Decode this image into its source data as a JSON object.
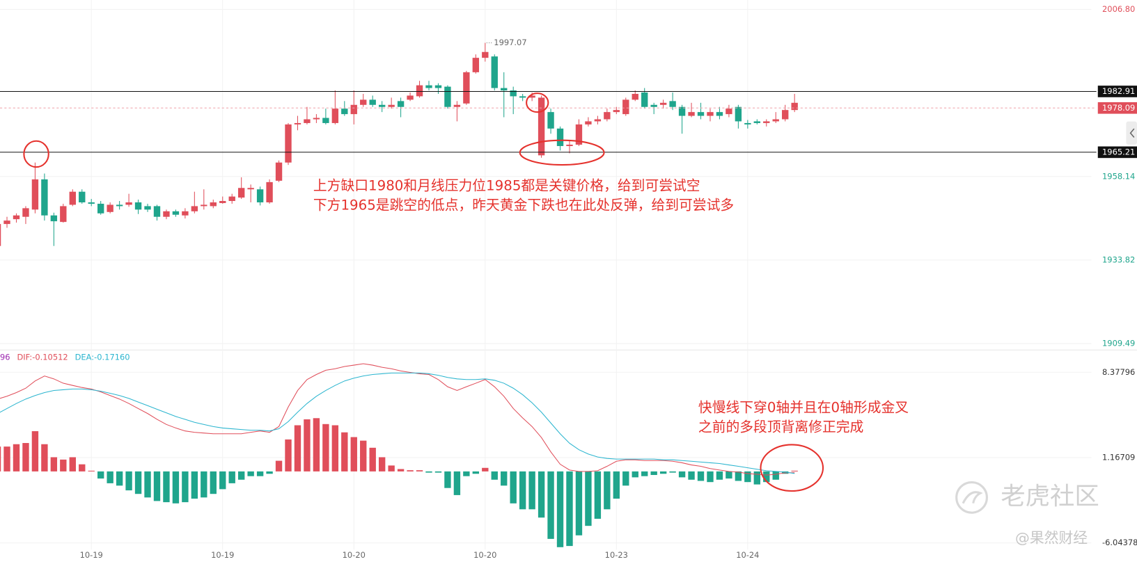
{
  "chart_data": [
    {
      "type": "candlestick",
      "categories": [
        null,
        null,
        null,
        null,
        null,
        null,
        null,
        null,
        null,
        null,
        "10-19",
        null,
        null,
        null,
        null,
        null,
        null,
        null,
        null,
        null,
        null,
        null,
        null,
        null,
        "10-19",
        null,
        null,
        null,
        null,
        null,
        null,
        null,
        null,
        null,
        null,
        null,
        null,
        null,
        "10-20",
        null,
        null,
        null,
        null,
        null,
        null,
        null,
        null,
        null,
        null,
        null,
        null,
        null,
        "10-20",
        null,
        null,
        null,
        null,
        null,
        null,
        null,
        null,
        null,
        null,
        null,
        null,
        null,
        "10-23",
        null,
        null,
        null,
        null,
        null,
        null,
        null,
        null,
        null,
        null,
        null,
        null,
        null,
        "10-24",
        null,
        null,
        null,
        null,
        null
      ],
      "open": [
        1937.9,
        1944.3,
        1945.7,
        1946.4,
        1948.5,
        1957.3,
        1946.8,
        1944.9,
        1949.9,
        1953.7,
        1950.6,
        1950.2,
        1947.8,
        1949.9,
        1949.9,
        1950.6,
        1949.5,
        1949.5,
        1946.4,
        1948.0,
        1946.8,
        1948.0,
        1949.5,
        1949.5,
        1950.4,
        1951.0,
        1952.0,
        1954.4,
        1954.4,
        1950.6,
        1956.9,
        1962.2,
        1973.3,
        1973.7,
        1974.8,
        1975.2,
        1973.7,
        1977.9,
        1976.3,
        1979.0,
        1980.5,
        1979.0,
        1978.4,
        1980.1,
        1980.5,
        1981.5,
        1984.7,
        1984.7,
        1984.3,
        1978.4,
        1979.4,
        1988.5,
        1992.7,
        1993.1,
        1983.9,
        1983.2,
        1981.5,
        1981.1,
        1964.3,
        1976.9,
        1972.1,
        1967.0,
        1967.4,
        1973.3,
        1974.2,
        1974.8,
        1976.9,
        1976.3,
        1980.5,
        1982.6,
        1979.0,
        1979.0,
        1980.1,
        1978.4,
        1975.8,
        1976.9,
        1975.8,
        1976.9,
        1976.3,
        1978.4,
        1973.7,
        1974.2,
        1973.7,
        1974.2,
        1974.8,
        1977.5
      ],
      "high": [
        1945.3,
        1946.4,
        1947.4,
        1949.5,
        1962.2,
        1959.0,
        1947.6,
        1950.2,
        1954.4,
        1954.4,
        1951.6,
        1951.0,
        1950.6,
        1951.0,
        1953.1,
        1951.4,
        1950.2,
        1949.9,
        1948.5,
        1948.5,
        1948.9,
        1953.7,
        1954.4,
        1951.4,
        1952.3,
        1953.1,
        1957.9,
        1955.8,
        1955.2,
        1957.3,
        1962.8,
        1973.7,
        1975.8,
        1978.4,
        1976.3,
        1977.9,
        1983.2,
        1980.1,
        1983.2,
        1982.2,
        1981.7,
        1980.1,
        1981.1,
        1981.1,
        1982.6,
        1986.0,
        1986.0,
        1985.3,
        1984.7,
        1980.1,
        1988.9,
        1993.7,
        1997.07,
        1993.7,
        1988.5,
        1984.3,
        1982.2,
        1982.6,
        1981.7,
        1977.9,
        1972.7,
        1968.5,
        1974.8,
        1975.4,
        1975.8,
        1977.9,
        1978.4,
        1981.1,
        1983.2,
        1983.9,
        1979.6,
        1980.5,
        1982.6,
        1979.0,
        1979.6,
        1979.6,
        1977.9,
        1978.4,
        1979.0,
        1979.0,
        1974.6,
        1974.8,
        1974.8,
        1976.9,
        1979.0,
        1982.2
      ],
      "low": [
        1937.5,
        1943.2,
        1944.7,
        1944.3,
        1947.4,
        1945.3,
        1937.9,
        1944.7,
        1949.5,
        1950.2,
        1949.5,
        1947.0,
        1947.4,
        1948.5,
        1949.3,
        1947.2,
        1947.8,
        1945.3,
        1945.7,
        1946.4,
        1945.9,
        1947.4,
        1948.5,
        1948.9,
        1950.2,
        1950.2,
        1951.6,
        1950.6,
        1949.7,
        1950.2,
        1956.5,
        1961.5,
        1971.6,
        1973.3,
        1973.7,
        1973.3,
        1973.3,
        1975.8,
        1973.3,
        1978.4,
        1978.4,
        1976.9,
        1977.9,
        1975.4,
        1980.1,
        1981.1,
        1983.2,
        1982.2,
        1977.9,
        1974.2,
        1979.0,
        1988.1,
        1991.6,
        1983.2,
        1975.4,
        1976.3,
        1980.1,
        1980.1,
        1963.6,
        1970.6,
        1965.7,
        1964.9,
        1967.0,
        1972.7,
        1973.3,
        1974.2,
        1976.3,
        1975.8,
        1980.1,
        1977.9,
        1976.3,
        1977.9,
        1977.5,
        1970.6,
        1975.4,
        1974.8,
        1974.2,
        1974.8,
        1975.4,
        1972.1,
        1972.1,
        1973.3,
        1972.7,
        1973.7,
        1974.2,
        1976.9
      ],
      "close": [
        1944.3,
        1945.3,
        1946.8,
        1948.9,
        1957.3,
        1946.8,
        1945.1,
        1949.5,
        1953.7,
        1950.6,
        1950.2,
        1947.4,
        1949.9,
        1949.5,
        1950.6,
        1948.5,
        1948.5,
        1946.4,
        1948.0,
        1947.0,
        1948.0,
        1949.5,
        1949.9,
        1950.6,
        1951.0,
        1952.3,
        1954.8,
        1954.8,
        1950.6,
        1956.5,
        1962.2,
        1973.3,
        1973.7,
        1974.8,
        1975.2,
        1973.7,
        1977.9,
        1976.3,
        1979.0,
        1980.5,
        1979.0,
        1978.4,
        1979.0,
        1978.4,
        1981.7,
        1984.7,
        1983.9,
        1983.9,
        1978.4,
        1979.0,
        1988.5,
        1992.7,
        1994.4,
        1983.9,
        1983.2,
        1981.5,
        1981.1,
        1981.7,
        1981.1,
        1972.1,
        1967.0,
        1967.4,
        1973.3,
        1974.2,
        1974.8,
        1976.9,
        1977.5,
        1980.5,
        1982.2,
        1978.4,
        1978.4,
        1979.6,
        1978.4,
        1975.8,
        1976.9,
        1975.8,
        1976.9,
        1975.8,
        1977.9,
        1974.2,
        1973.3,
        1973.7,
        1974.2,
        1974.8,
        1977.5,
        1979.6
      ],
      "up_color": "#e04e5a",
      "down_color": "#1fa58c",
      "ylim": [
        1907.82,
        2009.54
      ],
      "yticks": [
        {
          "value": 2006.8,
          "label": "2006.80"
        },
        1958.14,
        1933.82,
        1909.49
      ],
      "grid": true,
      "price_lines": [
        {
          "value": 1982.91,
          "color": "#111111",
          "dashed": false,
          "current": false
        },
        {
          "value": 1978.09,
          "color": "#e04e5a",
          "dashed": true,
          "current": true
        },
        {
          "value": 1965.21,
          "color": "#111111",
          "dashed": false,
          "current": false
        }
      ],
      "annotations": [
        "上方缺口1980和月线压力位1985都是关键价格，给到可尝试空",
        "下方1965是跳空的低点，昨天黄金下跌也在此处反弹，给到可尝试多"
      ]
    },
    {
      "type": "macd",
      "legend_prefix": "96",
      "series": [
        {
          "name": "DIF:",
          "color": "#e04e5a",
          "last_value_label": "-0.10512",
          "values": [
            6.11,
            6.35,
            6.66,
            7.03,
            7.64,
            8.06,
            7.82,
            7.45,
            7.27,
            7.09,
            6.96,
            6.72,
            6.41,
            6.11,
            5.74,
            5.31,
            4.89,
            4.4,
            3.97,
            3.67,
            3.42,
            3.3,
            3.24,
            3.18,
            3.18,
            3.18,
            3.18,
            3.3,
            3.42,
            3.3,
            3.79,
            5.44,
            6.84,
            7.76,
            8.19,
            8.55,
            8.67,
            8.86,
            8.98,
            9.1,
            8.98,
            8.8,
            8.67,
            8.49,
            8.37,
            8.25,
            8.19,
            7.76,
            7.15,
            6.84,
            7.15,
            7.45,
            7.76,
            7.15,
            6.35,
            5.31,
            4.52,
            3.79,
            2.87,
            1.65,
            0.61,
            0.12,
            0,
            0,
            0.06,
            0.43,
            0.86,
            0.98,
            0.98,
            0.92,
            0.92,
            0.92,
            0.86,
            0.73,
            0.55,
            0.43,
            0.24,
            0.12,
            0,
            -0.06,
            -0.18,
            -0.24,
            -0.31,
            -0.24,
            -0.12,
            -0.10512
          ]
        },
        {
          "name": "DEA:",
          "color": "#2bb5cf",
          "last_value_label": "-0.17160",
          "values": [
            4.89,
            5.31,
            5.74,
            6.11,
            6.41,
            6.66,
            6.84,
            6.9,
            6.96,
            6.96,
            6.9,
            6.78,
            6.6,
            6.41,
            6.17,
            5.86,
            5.56,
            5.25,
            4.95,
            4.64,
            4.4,
            4.15,
            3.97,
            3.79,
            3.67,
            3.6,
            3.54,
            3.48,
            3.48,
            3.42,
            3.6,
            4.21,
            5.01,
            5.74,
            6.35,
            6.84,
            7.27,
            7.64,
            7.88,
            8.06,
            8.19,
            8.25,
            8.31,
            8.31,
            8.31,
            8.31,
            8.25,
            8.12,
            7.94,
            7.82,
            7.76,
            7.76,
            7.82,
            7.7,
            7.45,
            7.03,
            6.48,
            5.8,
            5.01,
            4.09,
            3.18,
            2.38,
            1.83,
            1.47,
            1.22,
            1.1,
            1.04,
            1.04,
            1.04,
            1.04,
            1.04,
            0.98,
            0.98,
            0.92,
            0.86,
            0.79,
            0.73,
            0.67,
            0.55,
            0.43,
            0.31,
            0.18,
            0.06,
            0,
            -0.06,
            -0.1716
          ]
        }
      ],
      "histogram": [
        2.1,
        2.1,
        2.3,
        2.4,
        3.4,
        2.3,
        1.2,
        1.0,
        1.2,
        0.6,
        0.06,
        -0.6,
        -1.0,
        -1.2,
        -1.6,
        -1.9,
        -2.2,
        -2.5,
        -2.6,
        -2.7,
        -2.6,
        -2.3,
        -2.2,
        -1.9,
        -1.5,
        -1.0,
        -0.7,
        -0.4,
        -0.4,
        -0.2,
        0.9,
        2.7,
        3.9,
        4.4,
        4.5,
        4.0,
        3.9,
        3.3,
        2.9,
        2.6,
        2.0,
        1.2,
        0.5,
        0.2,
        0.1,
        0.1,
        -0.1,
        -0.1,
        -1.4,
        -2.0,
        -0.4,
        -0.2,
        0.3,
        -0.7,
        -1.2,
        -2.7,
        -3.2,
        -3.2,
        -3.9,
        -5.7,
        -6.4,
        -6.3,
        -5.4,
        -4.6,
        -4.0,
        -3.2,
        -2.3,
        -1.2,
        -0.5,
        -0.4,
        -0.3,
        -0.2,
        -0.1,
        -0.5,
        -0.7,
        -0.8,
        -0.9,
        -0.7,
        -0.6,
        -0.8,
        -0.9,
        -1.1,
        -0.9,
        -0.7,
        -0.2,
        0.06
      ],
      "up_color": "#e04e5a",
      "down_color": "#1fa58c",
      "ylim": [
        -6.6,
        10.2
      ],
      "yticks": [
        8.37796,
        1.16709,
        -6.04378
      ],
      "grid": true,
      "annotations": [
        "快慢线下穿0轴并且在0轴形成金叉",
        "之前的多段顶背离修正完成"
      ]
    }
  ],
  "watermark": {
    "logo": "老虎社区",
    "credit": "@果然财经"
  }
}
